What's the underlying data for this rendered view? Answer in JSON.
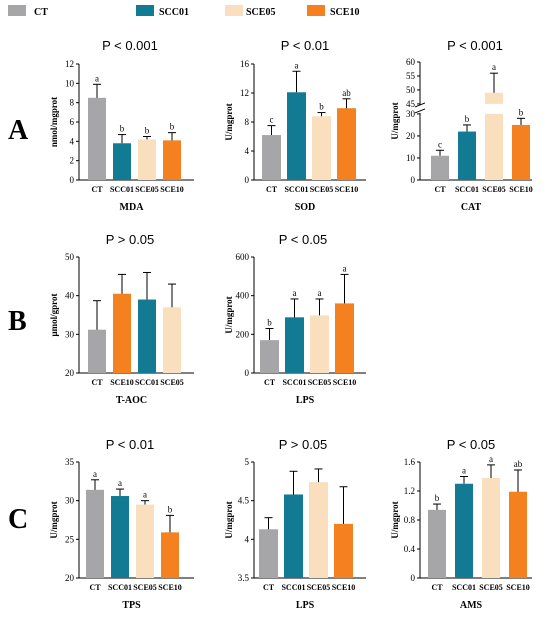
{
  "colors": {
    "CT": "#a6a6a8",
    "SCC01": "#127a93",
    "SCE05": "#f9dfbd",
    "SCE10": "#f4801f"
  },
  "legend": [
    {
      "key": "CT",
      "label": "CT"
    },
    {
      "key": "SCC01",
      "label": "SCC01"
    },
    {
      "key": "SCE05",
      "label": "SCE05"
    },
    {
      "key": "SCE10",
      "label": "SCE10"
    }
  ],
  "row_labels": [
    "A",
    "B",
    "C"
  ],
  "chart_data": [
    {
      "type": "bar",
      "row": "A",
      "pvalue": "P < 0.001",
      "xlabel": "MDA",
      "ylabel": "nmol/mgprot",
      "categories": [
        "CT",
        "SCC01",
        "SCE05",
        "SCE10"
      ],
      "values": [
        8.5,
        3.8,
        4.2,
        4.1
      ],
      "errors": [
        1.4,
        0.9,
        0.3,
        0.8
      ],
      "letters": [
        "a",
        "b",
        "b",
        "b"
      ],
      "ylim": [
        0,
        12
      ],
      "yticks": [
        0,
        2,
        4,
        6,
        8,
        10,
        12
      ]
    },
    {
      "type": "bar",
      "row": "A",
      "pvalue": "P < 0.01",
      "xlabel": "SOD",
      "ylabel": "U/mgprot",
      "categories": [
        "CT",
        "SCC01",
        "SCE05",
        "SCE10"
      ],
      "values": [
        6.2,
        12.1,
        8.8,
        9.9
      ],
      "errors": [
        1.3,
        2.9,
        0.5,
        1.3
      ],
      "letters": [
        "c",
        "a",
        "b",
        "ab"
      ],
      "ylim": [
        0,
        16
      ],
      "yticks": [
        0,
        4,
        8,
        12,
        16
      ]
    },
    {
      "type": "bar",
      "row": "A",
      "pvalue": "P < 0.001",
      "xlabel": "CAT",
      "ylabel": "U/mgprot",
      "categories": [
        "CT",
        "SCC01",
        "SCE05",
        "SCE10"
      ],
      "values": [
        11,
        22,
        49,
        25
      ],
      "errors": [
        2.5,
        3,
        7,
        3
      ],
      "letters": [
        "c",
        "b",
        "a",
        "b"
      ],
      "ylim": [
        0,
        60
      ],
      "axis_break": [
        30,
        45
      ],
      "yticks": [
        0,
        10,
        20,
        30,
        45,
        50,
        55,
        60
      ]
    },
    {
      "type": "bar",
      "row": "B",
      "pvalue": "P > 0.05",
      "xlabel": "T-AOC",
      "ylabel": "μmol/gprot",
      "categories": [
        "CT",
        "SCE10",
        "SCC01",
        "SCE05"
      ],
      "values": [
        31.2,
        40.5,
        39,
        37
      ],
      "errors": [
        7.5,
        5,
        7,
        6
      ],
      "color_keys": [
        "CT",
        "SCE10",
        "SCC01",
        "SCE05"
      ],
      "letters": [
        "",
        "",
        "",
        ""
      ],
      "ylim": [
        20,
        50
      ],
      "yticks": [
        20,
        30,
        40,
        50
      ]
    },
    {
      "type": "bar",
      "row": "B",
      "pvalue": "P < 0.05",
      "xlabel": "LPS",
      "ylabel": "U/mgprot",
      "categories": [
        "CT",
        "SCC01",
        "SCE05",
        "SCE10"
      ],
      "values": [
        170,
        288,
        298,
        360
      ],
      "errors": [
        60,
        95,
        85,
        150
      ],
      "letters": [
        "b",
        "a",
        "a",
        "a"
      ],
      "ylim": [
        0,
        600
      ],
      "yticks": [
        0,
        200,
        400,
        600
      ]
    },
    {
      "type": "bar",
      "row": "C",
      "pvalue": "P < 0.01",
      "xlabel": "TPS",
      "ylabel": "U/mgprot",
      "categories": [
        "CT",
        "SCC01",
        "SCE05",
        "SCE10"
      ],
      "values": [
        31.4,
        30.6,
        29.5,
        25.9
      ],
      "errors": [
        1.3,
        0.9,
        0.5,
        2.2
      ],
      "letters": [
        "a",
        "a",
        "a",
        "b"
      ],
      "ylim": [
        20,
        35
      ],
      "yticks": [
        20,
        25,
        30,
        35
      ]
    },
    {
      "type": "bar",
      "row": "C",
      "pvalue": "P > 0.05",
      "xlabel": "LPS",
      "ylabel": "U/mgprot",
      "categories": [
        "CT",
        "SCC01",
        "SCE05",
        "SCE10"
      ],
      "values": [
        4.13,
        4.58,
        4.74,
        4.2
      ],
      "errors": [
        0.15,
        0.3,
        0.17,
        0.48
      ],
      "letters": [
        "",
        "",
        "",
        ""
      ],
      "ylim": [
        3.5,
        5.0
      ],
      "yticks": [
        3.5,
        4.0,
        4.5,
        5.0
      ]
    },
    {
      "type": "bar",
      "row": "C",
      "pvalue": "P < 0.05",
      "xlabel": "AMS",
      "ylabel": "U/mgprot",
      "categories": [
        "CT",
        "SCC01",
        "SCE05",
        "SCE10"
      ],
      "values": [
        0.94,
        1.3,
        1.38,
        1.19
      ],
      "errors": [
        0.08,
        0.1,
        0.18,
        0.3
      ],
      "letters": [
        "b",
        "a",
        "a",
        "ab"
      ],
      "ylim": [
        0,
        1.6
      ],
      "yticks": [
        0.0,
        0.4,
        0.8,
        1.2,
        1.6
      ]
    }
  ]
}
